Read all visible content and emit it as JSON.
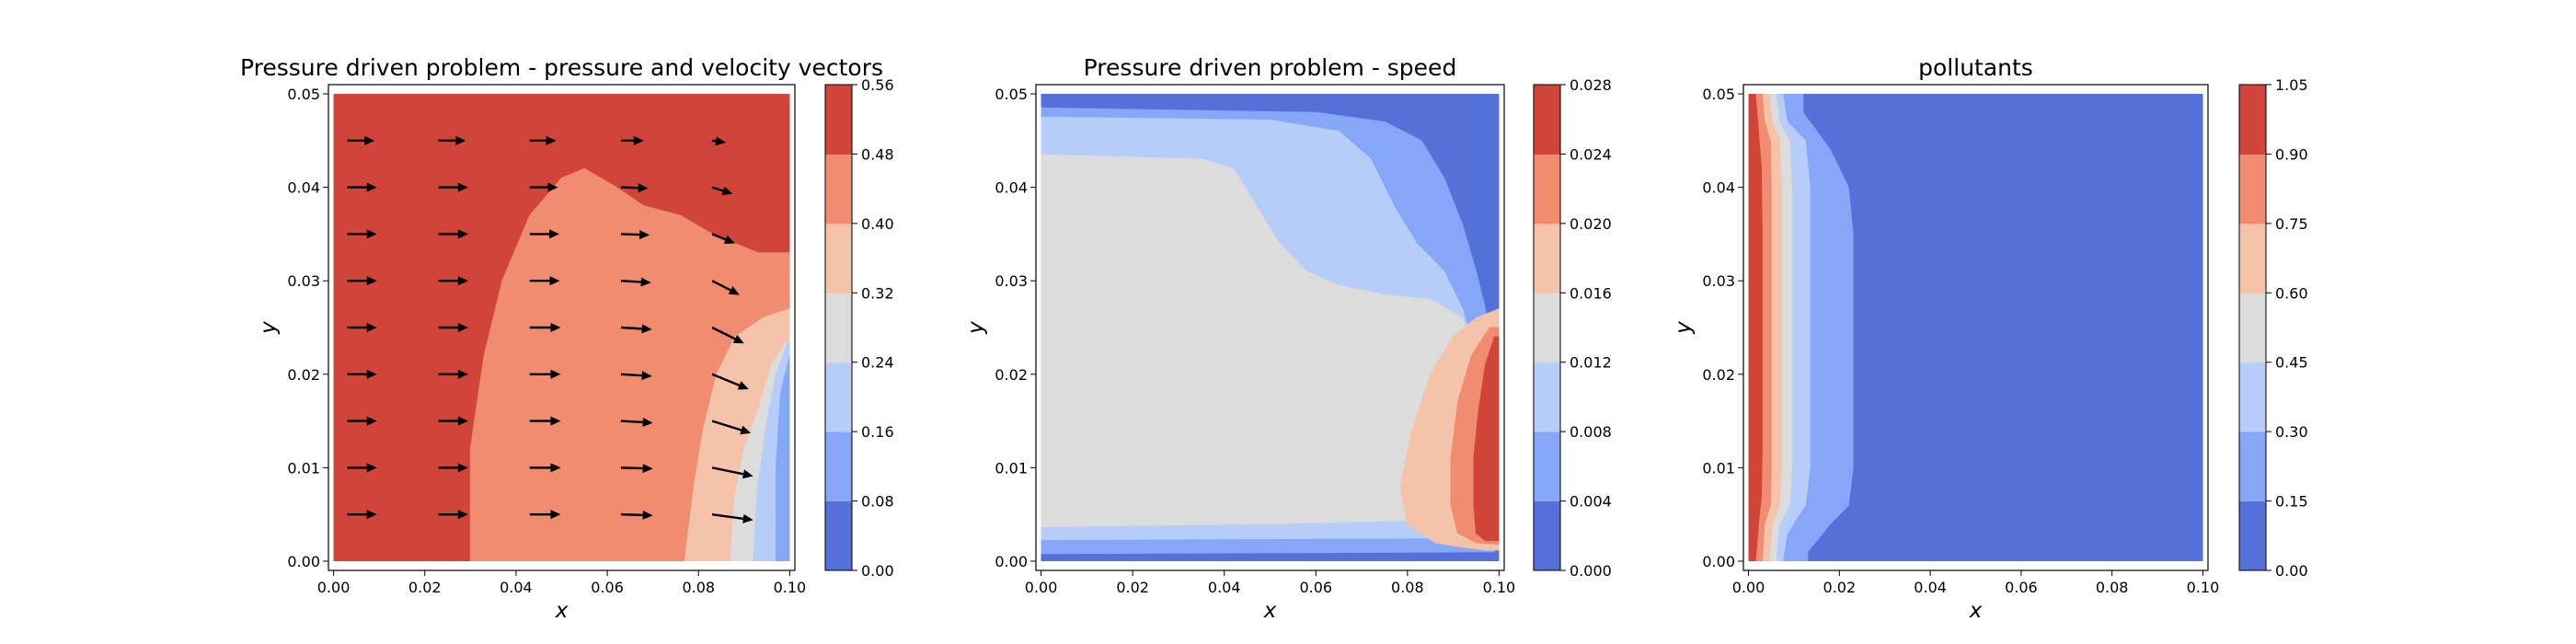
{
  "chart_data": [
    {
      "type": "contourf",
      "title": "Pressure driven problem - pressure and velocity vectors",
      "xlabel": "x",
      "ylabel": "y",
      "xlim": [
        0,
        0.1
      ],
      "ylim": [
        0,
        0.05
      ],
      "xticks": [
        "0.00",
        "0.02",
        "0.04",
        "0.06",
        "0.08",
        "0.10"
      ],
      "yticks": [
        "0.00",
        "0.01",
        "0.02",
        "0.03",
        "0.04",
        "0.05"
      ],
      "colorbar": {
        "levels": [
          0.0,
          0.08,
          0.16,
          0.24,
          0.32,
          0.4,
          0.48,
          0.56
        ],
        "ticklabels": [
          "0.00",
          "0.08",
          "0.16",
          "0.24",
          "0.32",
          "0.40",
          "0.48",
          "0.56"
        ],
        "colors": [
          "#5571d9",
          "#86a7f8",
          "#b6cdfa",
          "#dcdcdc",
          "#f5c2aa",
          "#f08c6f",
          "#d0443a"
        ]
      },
      "regions": [
        {
          "band": 6,
          "points": [
            [
              0,
              0
            ],
            [
              0,
              0.05
            ],
            [
              0.1,
              0.05
            ],
            [
              0.1,
              0
            ]
          ]
        },
        {
          "band": 5,
          "points": [
            [
              0.03,
              0
            ],
            [
              0.03,
              0.012
            ],
            [
              0.033,
              0.022
            ],
            [
              0.037,
              0.03
            ],
            [
              0.043,
              0.037
            ],
            [
              0.05,
              0.041
            ],
            [
              0.055,
              0.042
            ],
            [
              0.062,
              0.04
            ],
            [
              0.068,
              0.038
            ],
            [
              0.076,
              0.037
            ],
            [
              0.083,
              0.035
            ],
            [
              0.088,
              0.034
            ],
            [
              0.093,
              0.033
            ],
            [
              0.1,
              0.033
            ],
            [
              0.1,
              0
            ]
          ]
        },
        {
          "band": 4,
          "points": [
            [
              0.077,
              0
            ],
            [
              0.079,
              0.008
            ],
            [
              0.081,
              0.014
            ],
            [
              0.084,
              0.02
            ],
            [
              0.088,
              0.024
            ],
            [
              0.094,
              0.026
            ],
            [
              0.1,
              0.027
            ],
            [
              0.1,
              0
            ]
          ]
        },
        {
          "band": 3,
          "points": [
            [
              0.087,
              0
            ],
            [
              0.088,
              0.007
            ],
            [
              0.09,
              0.012
            ],
            [
              0.093,
              0.016
            ],
            [
              0.096,
              0.021
            ],
            [
              0.1,
              0.024
            ],
            [
              0.1,
              0
            ]
          ]
        },
        {
          "band": 2,
          "points": [
            [
              0.092,
              0
            ],
            [
              0.093,
              0.008
            ],
            [
              0.095,
              0.015
            ],
            [
              0.097,
              0.02
            ],
            [
              0.1,
              0.024
            ],
            [
              0.1,
              0
            ]
          ]
        },
        {
          "band": 1,
          "points": [
            [
              0.097,
              0
            ],
            [
              0.097,
              0.01
            ],
            [
              0.098,
              0.018
            ],
            [
              0.1,
              0.022
            ],
            [
              0.1,
              0
            ]
          ]
        }
      ],
      "quiver": {
        "x": [
          0.003,
          0.023,
          0.043,
          0.063,
          0.083
        ],
        "y": [
          0.005,
          0.01,
          0.015,
          0.02,
          0.025,
          0.03,
          0.035,
          0.04,
          0.045
        ],
        "u": [
          [
            0.0065,
            0.0065,
            0.0068,
            0.007,
            0.009
          ],
          [
            0.0065,
            0.0065,
            0.0068,
            0.007,
            0.009
          ],
          [
            0.0065,
            0.0065,
            0.0068,
            0.007,
            0.0085
          ],
          [
            0.0065,
            0.0065,
            0.0068,
            0.0068,
            0.008
          ],
          [
            0.0065,
            0.0065,
            0.0068,
            0.0068,
            0.007
          ],
          [
            0.0065,
            0.0065,
            0.0066,
            0.0066,
            0.006
          ],
          [
            0.0065,
            0.0065,
            0.0065,
            0.0063,
            0.005
          ],
          [
            0.0065,
            0.0065,
            0.0062,
            0.006,
            0.0045
          ],
          [
            0.006,
            0.006,
            0.0058,
            0.005,
            0.003
          ]
        ],
        "v": [
          [
            0,
            0,
            0,
            -0.0001,
            -0.0006
          ],
          [
            0,
            0,
            0,
            -0.0001,
            -0.0009
          ],
          [
            0,
            0,
            0,
            -0.0002,
            -0.0013
          ],
          [
            0,
            0,
            0,
            -0.0002,
            -0.0016
          ],
          [
            0,
            0,
            0,
            -0.0002,
            -0.0017
          ],
          [
            0,
            0,
            0,
            -0.0002,
            -0.0015
          ],
          [
            0,
            0,
            0,
            -0.0001,
            -0.001
          ],
          [
            0,
            0,
            0,
            -0.0001,
            -0.0007
          ],
          [
            0,
            0,
            0,
            0,
            -0.0002
          ]
        ]
      }
    },
    {
      "type": "contourf",
      "title": "Pressure driven problem - speed",
      "xlabel": "x",
      "ylabel": "y",
      "xlim": [
        0,
        0.1
      ],
      "ylim": [
        0,
        0.05
      ],
      "xticks": [
        "0.00",
        "0.02",
        "0.04",
        "0.06",
        "0.08",
        "0.10"
      ],
      "yticks": [
        "0.00",
        "0.01",
        "0.02",
        "0.03",
        "0.04",
        "0.05"
      ],
      "colorbar": {
        "levels": [
          0.0,
          0.004,
          0.008,
          0.012,
          0.016,
          0.02,
          0.024,
          0.028
        ],
        "ticklabels": [
          "0.000",
          "0.004",
          "0.008",
          "0.012",
          "0.016",
          "0.020",
          "0.024",
          "0.028"
        ],
        "colors": [
          "#5571d9",
          "#86a7f8",
          "#b6cdfa",
          "#dcdcdc",
          "#f5c2aa",
          "#f08c6f",
          "#d0443a"
        ]
      },
      "regions": [
        {
          "band": 0,
          "points": [
            [
              0,
              0
            ],
            [
              0,
              0.05
            ],
            [
              0.1,
              0.05
            ],
            [
              0.1,
              0
            ]
          ]
        },
        {
          "band": 1,
          "points": [
            [
              0,
              0.0008
            ],
            [
              0,
              0.0485
            ],
            [
              0.06,
              0.048
            ],
            [
              0.075,
              0.047
            ],
            [
              0.083,
              0.045
            ],
            [
              0.088,
              0.041
            ],
            [
              0.092,
              0.036
            ],
            [
              0.095,
              0.031
            ],
            [
              0.097,
              0.027
            ],
            [
              0.099,
              0.02
            ],
            [
              0.099,
              0.015
            ],
            [
              0.099,
              0.001
            ]
          ]
        },
        {
          "band": 2,
          "points": [
            [
              0,
              0.0023
            ],
            [
              0,
              0.0475
            ],
            [
              0.05,
              0.0472
            ],
            [
              0.065,
              0.046
            ],
            [
              0.072,
              0.043
            ],
            [
              0.077,
              0.038
            ],
            [
              0.082,
              0.034
            ],
            [
              0.088,
              0.031
            ],
            [
              0.092,
              0.027
            ],
            [
              0.095,
              0.022
            ],
            [
              0.097,
              0.016
            ],
            [
              0.097,
              0.003
            ],
            [
              0.09,
              0.0025
            ]
          ]
        },
        {
          "band": 3,
          "points": [
            [
              0,
              0.0037
            ],
            [
              0,
              0.0435
            ],
            [
              0.035,
              0.043
            ],
            [
              0.042,
              0.042
            ],
            [
              0.047,
              0.038
            ],
            [
              0.052,
              0.034
            ],
            [
              0.058,
              0.031
            ],
            [
              0.065,
              0.0295
            ],
            [
              0.075,
              0.0285
            ],
            [
              0.085,
              0.028
            ],
            [
              0.092,
              0.026
            ],
            [
              0.095,
              0.021
            ],
            [
              0.097,
              0.014
            ],
            [
              0.097,
              0.005
            ],
            [
              0.09,
              0.0045
            ],
            [
              0.05,
              0.004
            ]
          ]
        },
        {
          "band": 4,
          "points": [
            [
              0.095,
              0.026
            ],
            [
              0.09,
              0.024
            ],
            [
              0.085,
              0.02
            ],
            [
              0.081,
              0.014
            ],
            [
              0.0785,
              0.008
            ],
            [
              0.08,
              0.004
            ],
            [
              0.086,
              0.002
            ],
            [
              0.092,
              0.0015
            ],
            [
              0.097,
              0.0012
            ],
            [
              0.1,
              0.0012
            ],
            [
              0.1,
              0.027
            ]
          ]
        },
        {
          "band": 5,
          "points": [
            [
              0.098,
              0.025
            ],
            [
              0.094,
              0.022
            ],
            [
              0.091,
              0.017
            ],
            [
              0.0895,
              0.011
            ],
            [
              0.0895,
              0.006
            ],
            [
              0.091,
              0.003
            ],
            [
              0.095,
              0.002
            ],
            [
              0.1,
              0.0018
            ],
            [
              0.1,
              0.025
            ]
          ]
        },
        {
          "band": 6,
          "points": [
            [
              0.099,
              0.024
            ],
            [
              0.097,
              0.021
            ],
            [
              0.0955,
              0.016
            ],
            [
              0.0945,
              0.011
            ],
            [
              0.0945,
              0.006
            ],
            [
              0.095,
              0.003
            ],
            [
              0.097,
              0.0022
            ],
            [
              0.1,
              0.0022
            ],
            [
              0.1,
              0.024
            ]
          ]
        }
      ]
    },
    {
      "type": "contourf",
      "title": "pollutants",
      "xlabel": "x",
      "ylabel": "y",
      "xlim": [
        0,
        0.1
      ],
      "ylim": [
        0,
        0.05
      ],
      "xticks": [
        "0.00",
        "0.02",
        "0.04",
        "0.06",
        "0.08",
        "0.10"
      ],
      "yticks": [
        "0.00",
        "0.01",
        "0.02",
        "0.03",
        "0.04",
        "0.05"
      ],
      "colorbar": {
        "levels": [
          0.0,
          0.15,
          0.3,
          0.45,
          0.6,
          0.75,
          0.9,
          1.05
        ],
        "ticklabels": [
          "0.00",
          "0.15",
          "0.30",
          "0.45",
          "0.60",
          "0.75",
          "0.90",
          "1.05"
        ],
        "colors": [
          "#5571d9",
          "#86a7f8",
          "#b6cdfa",
          "#dcdcdc",
          "#f5c2aa",
          "#f08c6f",
          "#d0443a"
        ]
      },
      "regions": [
        {
          "band": 0,
          "points": [
            [
              0,
              0
            ],
            [
              0,
              0.05
            ],
            [
              0.1,
              0.05
            ],
            [
              0.1,
              0
            ]
          ]
        },
        {
          "band": 1,
          "points": [
            [
              0,
              0
            ],
            [
              0,
              0.05
            ],
            [
              0.012,
              0.05
            ],
            [
              0.012,
              0.048
            ],
            [
              0.018,
              0.044
            ],
            [
              0.022,
              0.04
            ],
            [
              0.023,
              0.035
            ],
            [
              0.023,
              0.01
            ],
            [
              0.022,
              0.006
            ],
            [
              0.018,
              0.004
            ],
            [
              0.013,
              0.001
            ],
            [
              0.013,
              0
            ]
          ]
        },
        {
          "band": 2,
          "points": [
            [
              0,
              0
            ],
            [
              0,
              0.05
            ],
            [
              0.0075,
              0.05
            ],
            [
              0.0085,
              0.047
            ],
            [
              0.0125,
              0.045
            ],
            [
              0.0135,
              0.04
            ],
            [
              0.0135,
              0.01
            ],
            [
              0.0125,
              0.006
            ],
            [
              0.0085,
              0.003
            ],
            [
              0.0075,
              0
            ]
          ]
        },
        {
          "band": 3,
          "points": [
            [
              0,
              0
            ],
            [
              0,
              0.05
            ],
            [
              0.006,
              0.05
            ],
            [
              0.0068,
              0.047
            ],
            [
              0.009,
              0.045
            ],
            [
              0.0095,
              0.04
            ],
            [
              0.0095,
              0.01
            ],
            [
              0.009,
              0.006
            ],
            [
              0.0068,
              0.004
            ],
            [
              0.006,
              0
            ]
          ]
        },
        {
          "band": 4,
          "points": [
            [
              0,
              0
            ],
            [
              0,
              0.05
            ],
            [
              0.0045,
              0.05
            ],
            [
              0.0052,
              0.047
            ],
            [
              0.0068,
              0.045
            ],
            [
              0.0072,
              0.04
            ],
            [
              0.0072,
              0.01
            ],
            [
              0.0068,
              0.006
            ],
            [
              0.0052,
              0.004
            ],
            [
              0.0045,
              0
            ]
          ]
        },
        {
          "band": 5,
          "points": [
            [
              0,
              0
            ],
            [
              0,
              0.05
            ],
            [
              0.003,
              0.05
            ],
            [
              0.0035,
              0.047
            ],
            [
              0.0048,
              0.045
            ],
            [
              0.005,
              0.04
            ],
            [
              0.005,
              0.01
            ],
            [
              0.0048,
              0.006
            ],
            [
              0.0035,
              0.004
            ],
            [
              0.003,
              0
            ]
          ]
        },
        {
          "band": 6,
          "points": [
            [
              0,
              0
            ],
            [
              0,
              0.05
            ],
            [
              0.0015,
              0.05
            ],
            [
              0.0022,
              0.046
            ],
            [
              0.0028,
              0.042
            ],
            [
              0.003,
              0.035
            ],
            [
              0.003,
              0.012
            ],
            [
              0.0028,
              0.007
            ],
            [
              0.0022,
              0.004
            ],
            [
              0.0015,
              0
            ]
          ]
        }
      ]
    }
  ]
}
